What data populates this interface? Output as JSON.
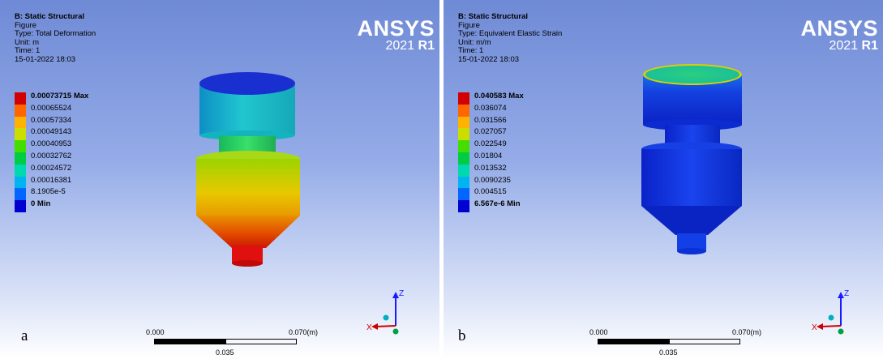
{
  "panels": [
    {
      "letter": "a",
      "info": {
        "title": "B: Static Structural",
        "line1": "Figure",
        "type": "Type: Total Deformation",
        "unit": "Unit: m",
        "time": "Time: 1",
        "date": "15-01-2022 18:03"
      },
      "legend": [
        "0.00073715 Max",
        "0.00065524",
        "0.00057334",
        "0.00049143",
        "0.00040953",
        "0.00032762",
        "0.00024572",
        "0.00016381",
        "8.1905e-5",
        "0 Min"
      ],
      "scale": {
        "left": "0.000",
        "right": "0.070",
        "unit": "(m)",
        "mid": "0.035"
      }
    },
    {
      "letter": "b",
      "info": {
        "title": "B: Static Structural",
        "line1": "Figure",
        "type": "Type: Equivalent Elastic Strain",
        "unit": "Unit: m/m",
        "time": "Time: 1",
        "date": "15-01-2022 18:03"
      },
      "legend": [
        "0.040583 Max",
        "0.036074",
        "0.031566",
        "0.027057",
        "0.022549",
        "0.01804",
        "0.013532",
        "0.0090235",
        "0.004515",
        "6.567e-6 Min"
      ],
      "scale": {
        "left": "0.000",
        "right": "0.070",
        "unit": "(m)",
        "mid": "0.035"
      }
    }
  ],
  "logo": {
    "name": "ANSYS",
    "year": "2021",
    "release": "R1"
  },
  "legend_colors": [
    "#d20000",
    "#ff6600",
    "#ffb300",
    "#ccdd00",
    "#44dd00",
    "#00cc44",
    "#00d8b0",
    "#00b4f0",
    "#0066ff",
    "#0000d0"
  ],
  "triad": {
    "z": "Z",
    "x": "X"
  }
}
